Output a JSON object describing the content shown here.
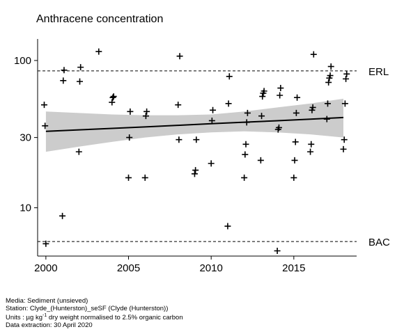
{
  "chart_data": {
    "type": "scatter",
    "title": "Anthracene concentration",
    "xlabel": "",
    "ylabel": "",
    "y_scale": "log",
    "xlim": [
      1999.5,
      2018.8
    ],
    "ylim": [
      4.7,
      140
    ],
    "x_ticks": [
      2000,
      2005,
      2010,
      2015
    ],
    "x_tick_labels": [
      "2000",
      "2005",
      "2010",
      "2015"
    ],
    "y_ticks": [
      10,
      30,
      100
    ],
    "y_tick_labels": [
      "10",
      "30",
      "100"
    ],
    "grid": false,
    "legend": "none",
    "thresholds": [
      {
        "label": "ERL",
        "value": 85
      },
      {
        "label": "BAC",
        "value": 5.9
      }
    ],
    "trend": {
      "x": [
        2000,
        2002,
        2004,
        2006,
        2008,
        2010,
        2012,
        2014,
        2016,
        2018
      ],
      "fit": [
        33,
        33.8,
        34.6,
        35.4,
        36.3,
        37.2,
        38.1,
        39,
        40,
        41
      ],
      "lower": [
        24,
        26,
        28,
        30,
        31.5,
        32.5,
        33,
        32.5,
        31.5,
        30
      ],
      "upper": [
        45,
        44,
        43,
        42.5,
        42.5,
        43,
        45,
        48,
        51,
        55
      ]
    },
    "series": [
      {
        "x": [
          1999.9,
          1999.95,
          2000,
          2001,
          2001.05,
          2001.1,
          2002,
          2002.05,
          2002.1,
          2003.2,
          2004,
          2004.05,
          2004.1,
          2005,
          2005.05,
          2005.1,
          2006,
          2006.05,
          2006.1,
          2008,
          2008.05,
          2008.1,
          2009,
          2009.05,
          2009.1,
          2010,
          2010.05,
          2010.1,
          2011,
          2011.05,
          2011.1,
          2012,
          2012.05,
          2012.1,
          2012.15,
          2012.2,
          2013,
          2013.05,
          2013.1,
          2013.15,
          2013.2,
          2014,
          2014.05,
          2014.1,
          2014.15,
          2014.2,
          2015,
          2015.05,
          2015.1,
          2015.15,
          2015.2,
          2016,
          2016.05,
          2016.1,
          2016.15,
          2016.2,
          2017,
          2017.05,
          2017.1,
          2017.15,
          2017.2,
          2017.25,
          2018,
          2018.05,
          2018.1,
          2018.15,
          2018.2
        ],
        "y": [
          50,
          36,
          5.7,
          8.8,
          73,
          86,
          24,
          72,
          90,
          115,
          52,
          56,
          57,
          16,
          30,
          45,
          16,
          42,
          45,
          50,
          29,
          107,
          17,
          18,
          29,
          20,
          39,
          46,
          7.5,
          51,
          78,
          16,
          23,
          27,
          38,
          44,
          21,
          42,
          57,
          60,
          62,
          5.1,
          34,
          35,
          58,
          65,
          16,
          21,
          28,
          44,
          56,
          24,
          27,
          46,
          48,
          110,
          40,
          51,
          71,
          76,
          79,
          91,
          25,
          29,
          51,
          75,
          81
        ]
      }
    ]
  },
  "footer": {
    "media": "Media: Sediment (unsieved)",
    "station": "Station: Clyde_(Hunterston)_seSF (Clyde (Hunterston))",
    "units_prefix": "Units : µg kg",
    "units_superscript": "-1",
    "units_suffix": " dry weight normalised to 2.5% organic carbon",
    "extraction": "Data extraction: 30 April 2020"
  }
}
